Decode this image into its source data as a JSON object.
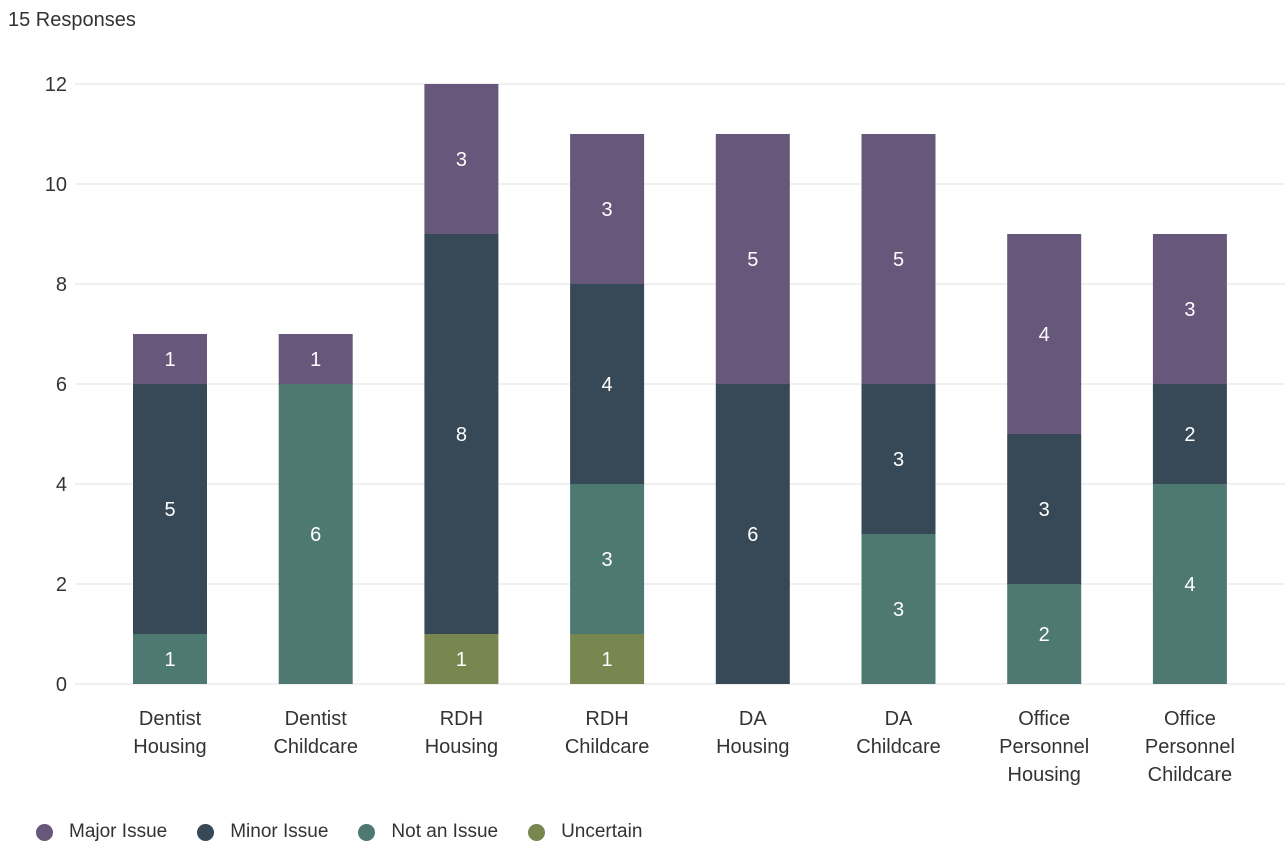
{
  "header": {
    "responses_label": "15 Responses"
  },
  "colors": {
    "major": "#67577a",
    "minor": "#374957",
    "not": "#4e7872",
    "uncertain": "#788650",
    "grid": "#e0e0e0",
    "text": "#333333",
    "bar_label": "#ffffff"
  },
  "chart_data": {
    "type": "bar",
    "stacked": true,
    "categories": [
      [
        "Dentist",
        "Housing"
      ],
      [
        "Dentist",
        "Childcare"
      ],
      [
        "RDH",
        "Housing"
      ],
      [
        "RDH",
        "Childcare"
      ],
      [
        "DA",
        "Housing"
      ],
      [
        "DA",
        "Childcare"
      ],
      [
        "Office",
        "Personnel",
        "Housing"
      ],
      [
        "Office",
        "Personnel",
        "Childcare"
      ]
    ],
    "series": [
      {
        "name": "Uncertain",
        "color_key": "uncertain",
        "values": [
          0,
          0,
          1,
          1,
          0,
          0,
          0,
          0
        ]
      },
      {
        "name": "Not an Issue",
        "color_key": "not",
        "values": [
          1,
          6,
          0,
          3,
          0,
          3,
          2,
          4
        ]
      },
      {
        "name": "Minor Issue",
        "color_key": "minor",
        "values": [
          5,
          0,
          8,
          4,
          6,
          3,
          3,
          2
        ]
      },
      {
        "name": "Major Issue",
        "color_key": "major",
        "values": [
          1,
          1,
          3,
          3,
          5,
          5,
          4,
          3
        ]
      }
    ],
    "legend_order": [
      "Major Issue",
      "Minor Issue",
      "Not an Issue",
      "Uncertain"
    ],
    "ylim": [
      0,
      12
    ],
    "yticks": [
      0,
      2,
      4,
      6,
      8,
      10,
      12
    ],
    "grid": true,
    "legend_position": "bottom-left",
    "title": "",
    "xlabel": "",
    "ylabel": ""
  }
}
